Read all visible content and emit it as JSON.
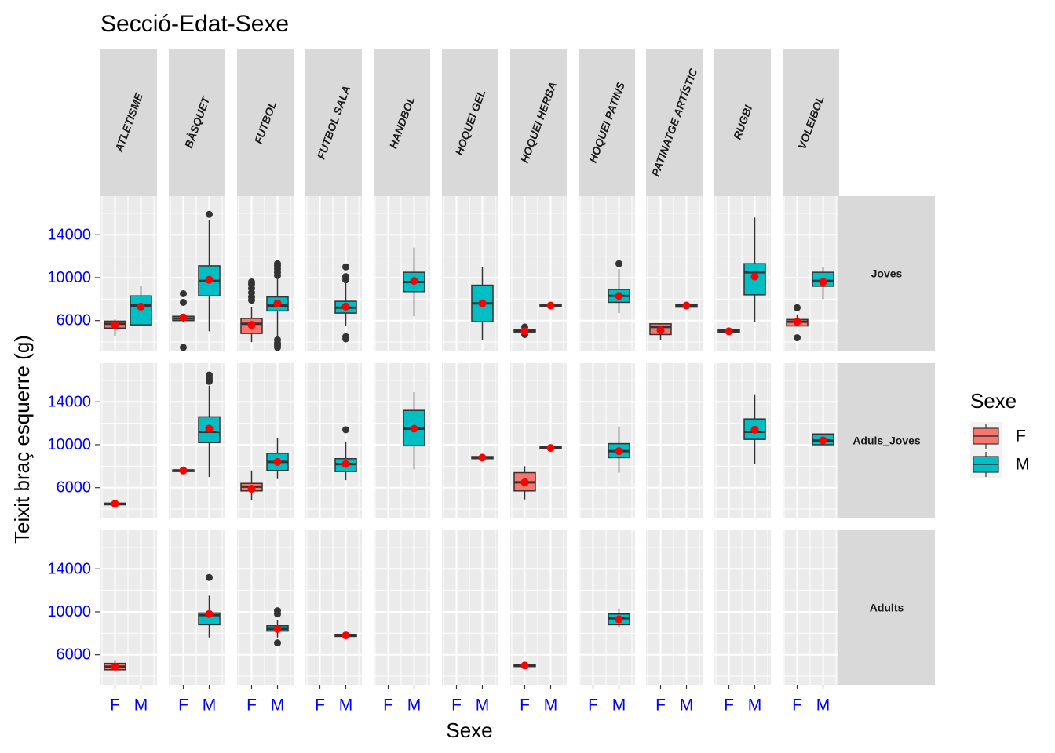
{
  "chart_data": {
    "type": "boxplot",
    "title": "Secció-Edat-Sexe",
    "xlabel": "Sexe",
    "ylabel": "Teixit braç esquerre (g)",
    "x_categories": [
      "F",
      "M"
    ],
    "y_ticks": [
      6000,
      10000,
      14000
    ],
    "ylim": [
      3200,
      17600
    ],
    "facet_columns": [
      "ATLETISME",
      "BÀSQUET",
      "FUTBOL",
      "FUTBOL SALA",
      "HANDBOL",
      "HOQUEI GEL",
      "HOQUEI HERBA",
      "HOQUEI PATINS",
      "PATINATGE ARTÍSTIC",
      "RUGBI",
      "VOLEIBOL"
    ],
    "facet_rows": [
      "Joves",
      "Aduls_Joves",
      "Adults"
    ],
    "legend": {
      "title": "Sexe",
      "position": "right",
      "items": [
        {
          "label": "F",
          "color": "#F8766D"
        },
        {
          "label": "M",
          "color": "#00BFC4"
        }
      ]
    },
    "colors": {
      "F": "#F8766D",
      "M": "#00BFC4",
      "mean_point": "#FF0000",
      "panel_bg": "#EBEBEB",
      "strip_bg": "#D9D9D9",
      "axis_text": "#0000FF"
    },
    "boxes": [
      {
        "row": 0,
        "col": 0,
        "sex": "F",
        "lower": 4600,
        "q1": 5300,
        "median": 5700,
        "q3": 5950,
        "upper": 6100,
        "mean": 5600,
        "outliers": []
      },
      {
        "row": 0,
        "col": 0,
        "sex": "M",
        "lower": 5600,
        "q1": 5600,
        "median": 7400,
        "q3": 8300,
        "upper": 9200,
        "mean": 7300,
        "outliers": []
      },
      {
        "row": 0,
        "col": 1,
        "sex": "F",
        "lower": 5900,
        "q1": 6000,
        "median": 6200,
        "q3": 6400,
        "upper": 6500,
        "mean": 6300,
        "outliers": [
          3500,
          7700,
          8500
        ]
      },
      {
        "row": 0,
        "col": 1,
        "sex": "M",
        "lower": 5000,
        "q1": 8300,
        "median": 9700,
        "q3": 11100,
        "upper": 15400,
        "mean": 9800,
        "outliers": [
          15900
        ]
      },
      {
        "row": 0,
        "col": 2,
        "sex": "F",
        "lower": 4000,
        "q1": 4800,
        "median": 5700,
        "q3": 6200,
        "upper": 7300,
        "mean": 5600,
        "outliers": [
          7900,
          8200,
          8600,
          9000,
          9400,
          9600
        ]
      },
      {
        "row": 0,
        "col": 2,
        "sex": "M",
        "lower": 4200,
        "q1": 6900,
        "median": 7400,
        "q3": 8200,
        "upper": 9900,
        "mean": 7600,
        "outliers": [
          3500,
          3700,
          3900,
          4200,
          10200,
          10500,
          10800,
          11100,
          11300
        ]
      },
      {
        "row": 0,
        "col": 3,
        "sex": "M",
        "lower": 5500,
        "q1": 6700,
        "median": 7200,
        "q3": 7800,
        "upper": 9500,
        "mean": 7300,
        "outliers": [
          4300,
          4500,
          9800,
          10100,
          11000
        ]
      },
      {
        "row": 0,
        "col": 4,
        "sex": "M",
        "lower": 6400,
        "q1": 8700,
        "median": 9600,
        "q3": 10500,
        "upper": 12800,
        "mean": 9700,
        "outliers": []
      },
      {
        "row": 0,
        "col": 5,
        "sex": "M",
        "lower": 4200,
        "q1": 5900,
        "median": 7600,
        "q3": 9300,
        "upper": 11000,
        "mean": 7600,
        "outliers": []
      },
      {
        "row": 0,
        "col": 6,
        "sex": "F",
        "lower": 4800,
        "q1": 4950,
        "median": 5000,
        "q3": 5150,
        "upper": 5300,
        "mean": 5000,
        "outliers": [
          4700,
          5400
        ]
      },
      {
        "row": 0,
        "col": 6,
        "sex": "M",
        "lower": 7200,
        "q1": 7300,
        "median": 7400,
        "q3": 7500,
        "upper": 7600,
        "mean": 7400,
        "outliers": []
      },
      {
        "row": 0,
        "col": 7,
        "sex": "M",
        "lower": 6700,
        "q1": 7700,
        "median": 8300,
        "q3": 8900,
        "upper": 10800,
        "mean": 8300,
        "outliers": [
          11300
        ]
      },
      {
        "row": 0,
        "col": 8,
        "sex": "F",
        "lower": 4200,
        "q1": 4700,
        "median": 5400,
        "q3": 5700,
        "upper": 5750,
        "mean": 5100,
        "outliers": []
      },
      {
        "row": 0,
        "col": 8,
        "sex": "M",
        "lower": 7200,
        "q1": 7250,
        "median": 7400,
        "q3": 7500,
        "upper": 7600,
        "mean": 7400,
        "outliers": []
      },
      {
        "row": 0,
        "col": 9,
        "sex": "F",
        "lower": 4850,
        "q1": 4900,
        "median": 5000,
        "q3": 5150,
        "upper": 5200,
        "mean": 5000,
        "outliers": []
      },
      {
        "row": 0,
        "col": 9,
        "sex": "M",
        "lower": 5900,
        "q1": 8400,
        "median": 10500,
        "q3": 11300,
        "upper": 15600,
        "mean": 10100,
        "outliers": []
      },
      {
        "row": 0,
        "col": 10,
        "sex": "F",
        "lower": 5500,
        "q1": 5500,
        "median": 5900,
        "q3": 6100,
        "upper": 6500,
        "mean": 5900,
        "outliers": [
          4400,
          7200
        ]
      },
      {
        "row": 0,
        "col": 10,
        "sex": "M",
        "lower": 8000,
        "q1": 9200,
        "median": 9700,
        "q3": 10500,
        "upper": 11000,
        "mean": 9600,
        "outliers": []
      },
      {
        "row": 1,
        "col": 0,
        "sex": "F",
        "lower": 4400,
        "q1": 4450,
        "median": 4500,
        "q3": 4550,
        "upper": 4600,
        "mean": 4500,
        "outliers": []
      },
      {
        "row": 1,
        "col": 1,
        "sex": "F",
        "lower": 7500,
        "q1": 7550,
        "median": 7600,
        "q3": 7650,
        "upper": 7700,
        "mean": 7600,
        "outliers": []
      },
      {
        "row": 1,
        "col": 1,
        "sex": "M",
        "lower": 7000,
        "q1": 10200,
        "median": 11200,
        "q3": 12600,
        "upper": 15500,
        "mean": 11500,
        "outliers": [
          15900,
          16100,
          16300,
          16500
        ]
      },
      {
        "row": 1,
        "col": 2,
        "sex": "F",
        "lower": 4800,
        "q1": 5700,
        "median": 6100,
        "q3": 6400,
        "upper": 7600,
        "mean": 5900,
        "outliers": []
      },
      {
        "row": 1,
        "col": 2,
        "sex": "M",
        "lower": 6800,
        "q1": 7600,
        "median": 8400,
        "q3": 9200,
        "upper": 10600,
        "mean": 8400,
        "outliers": []
      },
      {
        "row": 1,
        "col": 3,
        "sex": "M",
        "lower": 6700,
        "q1": 7500,
        "median": 8200,
        "q3": 8700,
        "upper": 10300,
        "mean": 8200,
        "outliers": [
          11400
        ]
      },
      {
        "row": 1,
        "col": 4,
        "sex": "M",
        "lower": 7700,
        "q1": 9900,
        "median": 11500,
        "q3": 13200,
        "upper": 14900,
        "mean": 11500,
        "outliers": []
      },
      {
        "row": 1,
        "col": 5,
        "sex": "M",
        "lower": 8650,
        "q1": 8700,
        "median": 8800,
        "q3": 8900,
        "upper": 8950,
        "mean": 8800,
        "outliers": []
      },
      {
        "row": 1,
        "col": 6,
        "sex": "F",
        "lower": 4900,
        "q1": 5700,
        "median": 6500,
        "q3": 7400,
        "upper": 8000,
        "mean": 6500,
        "outliers": []
      },
      {
        "row": 1,
        "col": 6,
        "sex": "M",
        "lower": 9600,
        "q1": 9650,
        "median": 9700,
        "q3": 9800,
        "upper": 9850,
        "mean": 9700,
        "outliers": []
      },
      {
        "row": 1,
        "col": 7,
        "sex": "M",
        "lower": 7400,
        "q1": 8800,
        "median": 9400,
        "q3": 10100,
        "upper": 11700,
        "mean": 9400,
        "outliers": []
      },
      {
        "row": 1,
        "col": 9,
        "sex": "M",
        "lower": 8200,
        "q1": 10500,
        "median": 11200,
        "q3": 12400,
        "upper": 14700,
        "mean": 11400,
        "outliers": []
      },
      {
        "row": 1,
        "col": 10,
        "sex": "M",
        "lower": 10000,
        "q1": 10000,
        "median": 10400,
        "q3": 11000,
        "upper": 11000,
        "mean": 10400,
        "outliers": []
      },
      {
        "row": 2,
        "col": 0,
        "sex": "F",
        "lower": 4400,
        "q1": 4600,
        "median": 4900,
        "q3": 5200,
        "upper": 5500,
        "mean": 4900,
        "outliers": []
      },
      {
        "row": 2,
        "col": 1,
        "sex": "M",
        "lower": 7600,
        "q1": 8800,
        "median": 9700,
        "q3": 9900,
        "upper": 11500,
        "mean": 9800,
        "outliers": [
          13200
        ]
      },
      {
        "row": 2,
        "col": 2,
        "sex": "M",
        "lower": 7600,
        "q1": 8200,
        "median": 8400,
        "q3": 8700,
        "upper": 9200,
        "mean": 8400,
        "outliers": [
          7100,
          9800,
          10100
        ]
      },
      {
        "row": 2,
        "col": 3,
        "sex": "M",
        "lower": 7700,
        "q1": 7700,
        "median": 7800,
        "q3": 7900,
        "upper": 7900,
        "mean": 7800,
        "outliers": []
      },
      {
        "row": 2,
        "col": 6,
        "sex": "F",
        "lower": 4900,
        "q1": 4950,
        "median": 5000,
        "q3": 5050,
        "upper": 5100,
        "mean": 5000,
        "outliers": []
      },
      {
        "row": 2,
        "col": 7,
        "sex": "M",
        "lower": 8500,
        "q1": 8800,
        "median": 9400,
        "q3": 9800,
        "upper": 10300,
        "mean": 9300,
        "outliers": []
      }
    ]
  }
}
